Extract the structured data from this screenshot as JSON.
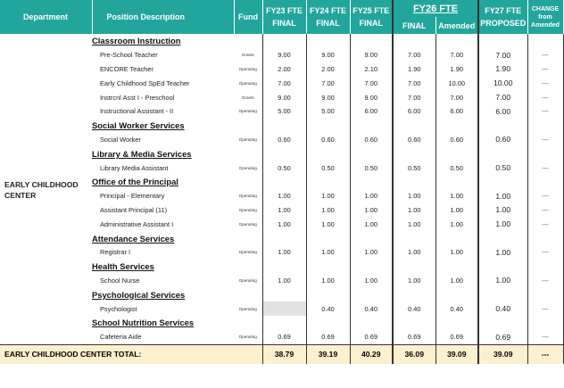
{
  "header": {
    "department": "Department",
    "position": "Position Description",
    "fund": "Fund",
    "fy23_line1": "FY23 FTE",
    "fy23_line2": "FINAL",
    "fy24_line1": "FY24 FTE",
    "fy24_line2": "FINAL",
    "fy25_line1": "FY25 FTE",
    "fy25_line2": "FINAL",
    "fy26_title": "FY26 FTE",
    "fy26_final": "FINAL",
    "fy26_amended": "Amended",
    "fy27_line1": "FY27 FTE",
    "fy27_line2": "PROPOSED",
    "change_line1": "CHANGE",
    "change_line2": "from",
    "change_line3": "Amended"
  },
  "department_name": "EARLY CHILDHOOD CENTER",
  "rows": [
    {
      "type": "section",
      "label": "Classroom Instruction"
    },
    {
      "type": "item",
      "label": "Pre-School Teacher",
      "fund": "Grants",
      "fy23": "9.00",
      "fy24": "9.00",
      "fy25": "9.00",
      "fy26f": "7.00",
      "fy26a": "7.00",
      "fy27": "7.00",
      "change": "---"
    },
    {
      "type": "item",
      "label": "ENCORE Teacher",
      "fund": "Operating",
      "fy23": "2.00",
      "fy24": "2.00",
      "fy25": "2.10",
      "fy26f": "1.90",
      "fy26a": "1.90",
      "fy27": "1.90",
      "change": "---"
    },
    {
      "type": "item",
      "label": "Early Childhood SpEd Teacher",
      "fund": "Operating",
      "fy23": "7.00",
      "fy24": "7.00",
      "fy25": "7.00",
      "fy26f": "7.00",
      "fy26a": "10.00",
      "fy27": "10.00",
      "change": "---"
    },
    {
      "type": "item",
      "label": "Instrcnl Asst I - Preschool",
      "fund": "Grants",
      "fy23": "9.00",
      "fy24": "9.00",
      "fy25": "9.00",
      "fy26f": "7.00",
      "fy26a": "7.00",
      "fy27": "7.00",
      "change": "---"
    },
    {
      "type": "item",
      "label": "Instructional Assistant - II",
      "fund": "Operating",
      "fy23": "5.00",
      "fy24": "5.00",
      "fy25": "6.00",
      "fy26f": "6.00",
      "fy26a": "6.00",
      "fy27": "6.00",
      "change": "---"
    },
    {
      "type": "section",
      "label": "Social Worker Services"
    },
    {
      "type": "item",
      "label": "Social Worker",
      "fund": "Operating",
      "fy23": "0.60",
      "fy24": "0.60",
      "fy25": "0.60",
      "fy26f": "0.60",
      "fy26a": "0.60",
      "fy27": "0.60",
      "change": "---"
    },
    {
      "type": "section",
      "label": "Library & Media Services"
    },
    {
      "type": "item",
      "label": "Library Media Assistant",
      "fund": "Operating",
      "fy23": "0.50",
      "fy24": "0.50",
      "fy25": "0.50",
      "fy26f": "0.50",
      "fy26a": "0.50",
      "fy27": "0.50",
      "change": "---"
    },
    {
      "type": "section",
      "label": "Office of the Principal"
    },
    {
      "type": "item",
      "label": "Principal - Elementary",
      "fund": "Operating",
      "fy23": "1.00",
      "fy24": "1.00",
      "fy25": "1.00",
      "fy26f": "1.00",
      "fy26a": "1.00",
      "fy27": "1.00",
      "change": "---"
    },
    {
      "type": "item",
      "label": "Assistant Principal (11)",
      "fund": "Operating",
      "fy23": "1.00",
      "fy24": "1.00",
      "fy25": "1.00",
      "fy26f": "1.00",
      "fy26a": "1.00",
      "fy27": "1.00",
      "change": "---"
    },
    {
      "type": "item",
      "label": "Administrative Assistant I",
      "fund": "Operating",
      "fy23": "1.00",
      "fy24": "1.00",
      "fy25": "1.00",
      "fy26f": "1.00",
      "fy26a": "1.00",
      "fy27": "1.00",
      "change": "---"
    },
    {
      "type": "section",
      "label": "Attendance Services"
    },
    {
      "type": "item",
      "label": "Registrar I",
      "fund": "Operating",
      "fy23": "1.00",
      "fy24": "1.00",
      "fy25": "1.00",
      "fy26f": "1.00",
      "fy26a": "1.00",
      "fy27": "1.00",
      "change": "---"
    },
    {
      "type": "section",
      "label": "Health Services"
    },
    {
      "type": "item",
      "label": "School Nurse",
      "fund": "Operating",
      "fy23": "1.00",
      "fy24": "1.00",
      "fy25": "1.00",
      "fy26f": "1.00",
      "fy26a": "1.00",
      "fy27": "1.00",
      "change": "---"
    },
    {
      "type": "section",
      "label": "Psychological Services"
    },
    {
      "type": "item",
      "label": "Psychologist",
      "fund": "Operating",
      "fy23": "",
      "fy24": "0.40",
      "fy25": "0.40",
      "fy26f": "0.40",
      "fy26a": "0.40",
      "fy27": "0.40",
      "change": "---",
      "gray": true
    },
    {
      "type": "section",
      "label": "School Nutrition Services"
    },
    {
      "type": "item",
      "label": "Cafeteria Aide",
      "fund": "Operating",
      "fy23": "0.69",
      "fy24": "0.69",
      "fy25": "0.69",
      "fy26f": "0.69",
      "fy26a": "0.69",
      "fy27": "0.69",
      "change": "---"
    }
  ],
  "total": {
    "label": "EARLY CHILDHOOD CENTER TOTAL:",
    "fy23": "38.79",
    "fy24": "39.19",
    "fy25": "40.29",
    "fy26f": "36.09",
    "fy26a": "39.09",
    "fy27": "39.09",
    "change": "---"
  }
}
